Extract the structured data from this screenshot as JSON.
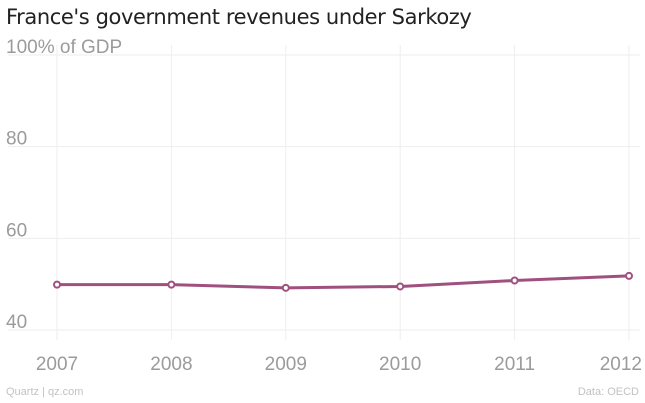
{
  "title": "France's government revenues under Sarkozy",
  "footer": {
    "source": "Quartz | qz.com",
    "data": "Data: OECD"
  },
  "colors": {
    "line": "#a0507f",
    "grid": "#eeeeee",
    "tick_label": "#9b9b9b",
    "title": "#222222",
    "footer": "#c2c2c2"
  },
  "chart_data": {
    "type": "line",
    "title": "France's government revenues under Sarkozy",
    "ylabel": "% of GDP",
    "xlabel": "",
    "x": [
      "2007",
      "2008",
      "2009",
      "2010",
      "2011",
      "2012"
    ],
    "series": [
      {
        "name": "",
        "values": [
          49.9,
          49.9,
          49.2,
          49.5,
          50.8,
          51.8
        ]
      }
    ],
    "ylim": [
      40,
      100
    ],
    "yticks": [
      40,
      60,
      80,
      100
    ],
    "ytick_labels": [
      "40",
      "60",
      "80",
      "100% of GDP"
    ],
    "grid": true,
    "legend": "none"
  }
}
